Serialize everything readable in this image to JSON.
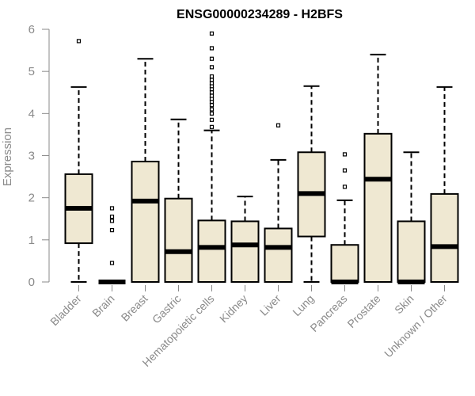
{
  "chart_data": {
    "type": "boxplot",
    "title": "ENSG00000234289 - H2BFS",
    "xlabel": "",
    "ylabel": "Expression",
    "ylim": [
      0,
      6
    ],
    "yticks": [
      0,
      1,
      2,
      3,
      4,
      5,
      6
    ],
    "box_color": "#efe8d2",
    "categories": [
      "Bladder",
      "Brain",
      "Breast",
      "Gastric",
      "Hematopoietic cells",
      "Kidney",
      "Liver",
      "Lung",
      "Pancreas",
      "Prostate",
      "Skin",
      "Unknown / Other"
    ],
    "series": [
      {
        "name": "Bladder",
        "whisker_low": 0.0,
        "q1": 0.92,
        "median": 1.75,
        "q3": 2.56,
        "whisker_high": 4.63,
        "outliers": [
          5.72
        ]
      },
      {
        "name": "Brain",
        "whisker_low": 0.0,
        "q1": 0.0,
        "median": 0.0,
        "q3": 0.0,
        "whisker_high": 0.0,
        "outliers": [
          0.45,
          1.23,
          1.45,
          1.55,
          1.75
        ]
      },
      {
        "name": "Breast",
        "whisker_low": 0.0,
        "q1": 0.0,
        "median": 1.92,
        "q3": 2.86,
        "whisker_high": 5.3,
        "outliers": []
      },
      {
        "name": "Gastric",
        "whisker_low": 0.0,
        "q1": 0.0,
        "median": 0.72,
        "q3": 1.98,
        "whisker_high": 3.86,
        "outliers": []
      },
      {
        "name": "Hematopoietic cells",
        "whisker_low": 0.0,
        "q1": 0.0,
        "median": 0.82,
        "q3": 1.46,
        "whisker_high": 3.6,
        "outliers": [
          3.68,
          3.85,
          4.0,
          4.1,
          4.2,
          4.28,
          4.35,
          4.42,
          4.5,
          4.58,
          4.65,
          4.72,
          4.8,
          4.88,
          5.1,
          5.3,
          5.55,
          5.9
        ]
      },
      {
        "name": "Kidney",
        "whisker_low": 0.0,
        "q1": 0.0,
        "median": 0.88,
        "q3": 1.44,
        "whisker_high": 2.03,
        "outliers": []
      },
      {
        "name": "Liver",
        "whisker_low": 0.0,
        "q1": 0.0,
        "median": 0.82,
        "q3": 1.27,
        "whisker_high": 2.9,
        "outliers": [
          3.72
        ]
      },
      {
        "name": "Lung",
        "whisker_low": 0.0,
        "q1": 1.08,
        "median": 2.1,
        "q3": 3.08,
        "whisker_high": 4.65,
        "outliers": []
      },
      {
        "name": "Pancreas",
        "whisker_low": 0.0,
        "q1": 0.0,
        "median": 0.0,
        "q3": 0.88,
        "whisker_high": 1.94,
        "outliers": [
          2.26,
          2.65,
          3.03
        ]
      },
      {
        "name": "Prostate",
        "whisker_low": 0.0,
        "q1": 0.0,
        "median": 2.44,
        "q3": 3.52,
        "whisker_high": 5.4,
        "outliers": []
      },
      {
        "name": "Skin",
        "whisker_low": 0.0,
        "q1": 0.0,
        "median": 0.0,
        "q3": 1.44,
        "whisker_high": 3.08,
        "outliers": []
      },
      {
        "name": "Unknown / Other",
        "whisker_low": 0.0,
        "q1": 0.0,
        "median": 0.84,
        "q3": 2.09,
        "whisker_high": 4.63,
        "outliers": []
      }
    ]
  }
}
